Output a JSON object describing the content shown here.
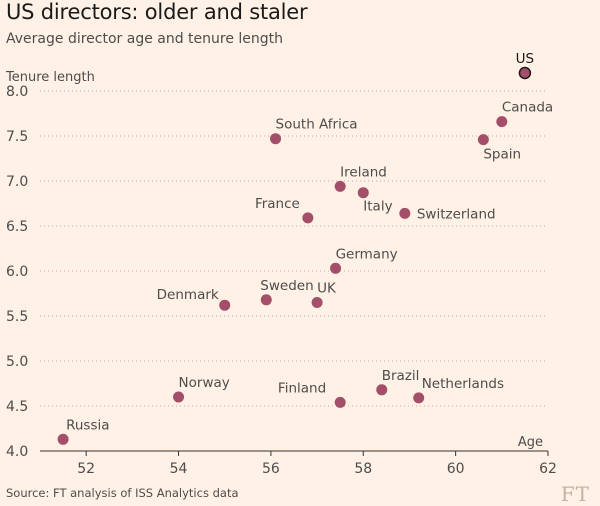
{
  "title": "US directors: older and staler",
  "subtitle": "Average director age and tenure length",
  "source": "Source: FT analysis of ISS Analytics data",
  "logo": "FT",
  "colors": {
    "point": "#a44f69",
    "highlight_stroke": "#1a1a1a",
    "grid": "#b8aea4",
    "axis": "#333333"
  },
  "chart_data": {
    "type": "scatter",
    "xlabel": "Age",
    "ylabel": "Tenure length",
    "xlim": [
      51,
      62
    ],
    "ylim": [
      4.0,
      8.2
    ],
    "x_ticks": [
      52,
      54,
      56,
      58,
      60,
      62
    ],
    "y_ticks": [
      "4.0",
      "4.5",
      "5.0",
      "5.5",
      "6.0",
      "6.5",
      "7.0",
      "7.5",
      "8.0"
    ],
    "grid": "horizontal",
    "points": [
      {
        "label": "US",
        "x": 61.5,
        "y": 8.2,
        "highlight": true
      },
      {
        "label": "Canada",
        "x": 61.0,
        "y": 7.66
      },
      {
        "label": "Spain",
        "x": 60.6,
        "y": 7.46
      },
      {
        "label": "South Africa",
        "x": 56.1,
        "y": 7.47
      },
      {
        "label": "Ireland",
        "x": 57.5,
        "y": 6.94
      },
      {
        "label": "Italy",
        "x": 58.0,
        "y": 6.87
      },
      {
        "label": "Switzerland",
        "x": 58.9,
        "y": 6.64
      },
      {
        "label": "France",
        "x": 56.8,
        "y": 6.59
      },
      {
        "label": "Germany",
        "x": 57.4,
        "y": 6.03
      },
      {
        "label": "Sweden",
        "x": 55.9,
        "y": 5.68
      },
      {
        "label": "UK",
        "x": 57.0,
        "y": 5.65
      },
      {
        "label": "Denmark",
        "x": 55.0,
        "y": 5.62
      },
      {
        "label": "Norway",
        "x": 54.0,
        "y": 4.6
      },
      {
        "label": "Brazil",
        "x": 58.4,
        "y": 4.68
      },
      {
        "label": "Netherlands",
        "x": 59.2,
        "y": 4.59
      },
      {
        "label": "Finland",
        "x": 57.5,
        "y": 4.54
      },
      {
        "label": "Russia",
        "x": 51.5,
        "y": 4.13
      }
    ]
  }
}
